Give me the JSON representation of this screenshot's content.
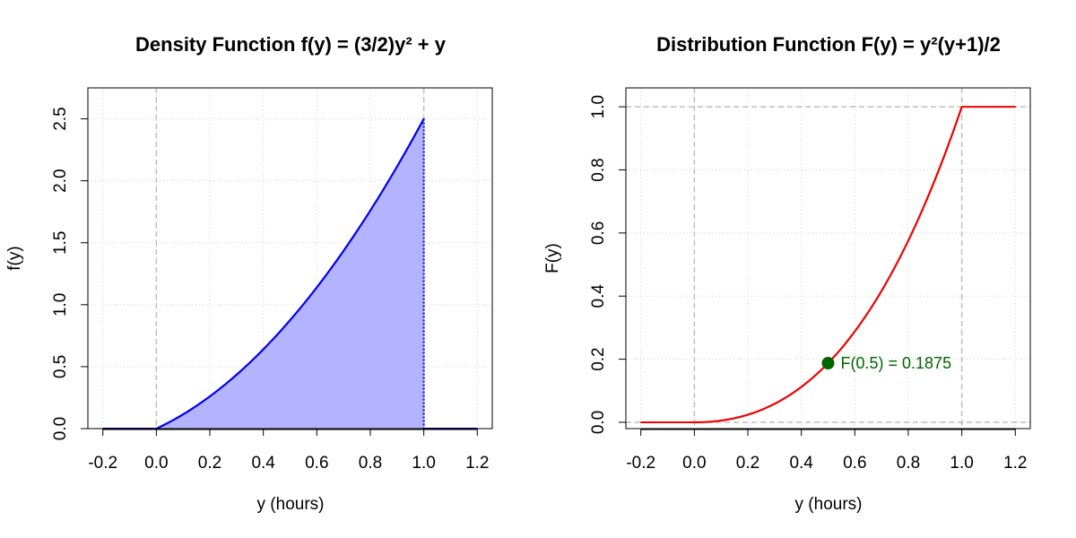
{
  "chart_data": [
    {
      "type": "area",
      "title": "Density Function f(y) = (3/2)y² + y",
      "xlabel": "y (hours)",
      "ylabel": "f(y)",
      "xlim": [
        -0.2,
        1.2
      ],
      "ylim": [
        0,
        2.75
      ],
      "xticks": [
        "-0.2",
        "0.0",
        "0.2",
        "0.4",
        "0.6",
        "0.8",
        "1.0",
        "1.2"
      ],
      "yticks": [
        "0.0",
        "0.5",
        "1.0",
        "1.5",
        "2.0",
        "2.5"
      ],
      "grid": true,
      "colors": {
        "line": "#0000ee",
        "fill": "#b3b3ff",
        "grid": "#d0d0d0",
        "ref": "#bebebe"
      },
      "series": [
        {
          "x": [
            -0.2,
            0.0,
            0.1,
            0.2,
            0.3,
            0.4,
            0.5,
            0.6,
            0.7,
            0.8,
            0.9,
            1.0,
            1.0,
            1.2
          ],
          "y": [
            0.0,
            0.0,
            0.115,
            0.26,
            0.435,
            0.64,
            0.875,
            1.14,
            1.435,
            1.76,
            2.115,
            2.5,
            0.0,
            0.0
          ]
        }
      ],
      "reference_lines_x": [
        0.0,
        1.0
      ]
    },
    {
      "type": "line",
      "title": "Distribution Function F(y) = y²(y+1)/2",
      "xlabel": "y (hours)",
      "ylabel": "F(y)",
      "xlim": [
        -0.2,
        1.2
      ],
      "ylim": [
        -0.02,
        1.06
      ],
      "xticks": [
        "-0.2",
        "0.0",
        "0.2",
        "0.4",
        "0.6",
        "0.8",
        "1.0",
        "1.2"
      ],
      "yticks": [
        "0.0",
        "0.2",
        "0.4",
        "0.6",
        "0.8",
        "1.0"
      ],
      "grid": true,
      "colors": {
        "line": "#ee0000",
        "point": "#006400",
        "grid": "#d0d0d0",
        "ref": "#bebebe"
      },
      "series": [
        {
          "x": [
            -0.2,
            0.0,
            0.1,
            0.2,
            0.3,
            0.4,
            0.5,
            0.6,
            0.7,
            0.8,
            0.9,
            1.0,
            1.2
          ],
          "y": [
            0.0,
            0.0,
            0.0055,
            0.024,
            0.0585,
            0.112,
            0.1875,
            0.288,
            0.4165,
            0.576,
            0.7695,
            1.0,
            1.0
          ]
        }
      ],
      "reference_lines_x": [
        0.0,
        1.0
      ],
      "reference_lines_y": [
        0.0,
        1.0
      ],
      "annotation": {
        "x": 0.5,
        "y": 0.1875,
        "text": "F(0.5) = 0.1875"
      }
    }
  ]
}
